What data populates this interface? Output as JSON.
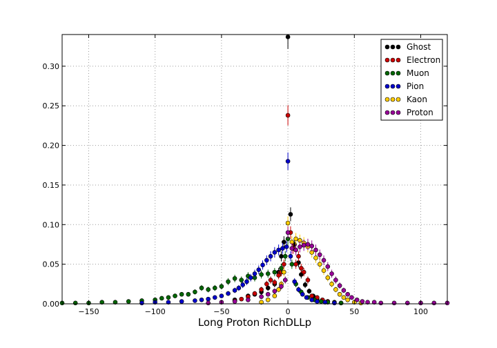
{
  "chart_data": {
    "type": "scatter",
    "title": "",
    "xlabel": "Long Proton RichDLLp",
    "ylabel": "",
    "xlim": [
      -170,
      120
    ],
    "ylim": [
      0,
      0.34
    ],
    "xticks": [
      -150,
      -100,
      -50,
      0,
      50,
      100
    ],
    "xtick_labels": [
      "−150",
      "−100",
      "−50",
      "0",
      "50",
      "100"
    ],
    "yticks": [
      0.0,
      0.05,
      0.1,
      0.15,
      0.2,
      0.25,
      0.3
    ],
    "ytick_labels": [
      "0.00",
      "0.05",
      "0.10",
      "0.15",
      "0.20",
      "0.25",
      "0.30"
    ],
    "grid": true,
    "legend_position": "top-right",
    "series": [
      {
        "name": "Ghost",
        "color": "#000000",
        "points": [
          [
            -40,
            0.005
          ],
          [
            -30,
            0.01
          ],
          [
            -25,
            0.012
          ],
          [
            -20,
            0.015
          ],
          [
            -15,
            0.02
          ],
          [
            -10,
            0.025
          ],
          [
            -7,
            0.04
          ],
          [
            -5,
            0.06
          ],
          [
            -3,
            0.078
          ],
          [
            0,
            0.337
          ],
          [
            2,
            0.113
          ],
          [
            5,
            0.075
          ],
          [
            8,
            0.052
          ],
          [
            10,
            0.037
          ],
          [
            13,
            0.024
          ],
          [
            16,
            0.016
          ],
          [
            19,
            0.01
          ],
          [
            22,
            0.006
          ],
          [
            26,
            0.004
          ],
          [
            30,
            0.003
          ],
          [
            35,
            0.002
          ],
          [
            40,
            0.001
          ]
        ]
      },
      {
        "name": "Electron",
        "color": "#cc0000",
        "points": [
          [
            -40,
            0.004
          ],
          [
            -35,
            0.006
          ],
          [
            -30,
            0.009
          ],
          [
            -25,
            0.013
          ],
          [
            -20,
            0.018
          ],
          [
            -16,
            0.025
          ],
          [
            -13,
            0.03
          ],
          [
            -10,
            0.027
          ],
          [
            -7,
            0.036
          ],
          [
            -5,
            0.04
          ],
          [
            -3,
            0.05
          ],
          [
            0,
            0.238
          ],
          [
            2,
            0.09
          ],
          [
            4,
            0.07
          ],
          [
            6,
            0.05
          ],
          [
            8,
            0.06
          ],
          [
            10,
            0.045
          ],
          [
            12,
            0.04
          ],
          [
            15,
            0.03
          ],
          [
            18,
            0.01
          ],
          [
            22,
            0.008
          ],
          [
            26,
            0.005
          ],
          [
            30,
            0.003
          ]
        ]
      },
      {
        "name": "Muon",
        "color": "#006600",
        "points": [
          [
            -170,
            0.001
          ],
          [
            -160,
            0.001
          ],
          [
            -150,
            0.001
          ],
          [
            -140,
            0.002
          ],
          [
            -130,
            0.002
          ],
          [
            -120,
            0.003
          ],
          [
            -110,
            0.004
          ],
          [
            -100,
            0.005
          ],
          [
            -95,
            0.007
          ],
          [
            -90,
            0.008
          ],
          [
            -85,
            0.01
          ],
          [
            -80,
            0.012
          ],
          [
            -75,
            0.012
          ],
          [
            -70,
            0.015
          ],
          [
            -65,
            0.02
          ],
          [
            -60,
            0.018
          ],
          [
            -55,
            0.02
          ],
          [
            -50,
            0.022
          ],
          [
            -45,
            0.028
          ],
          [
            -40,
            0.032
          ],
          [
            -35,
            0.03
          ],
          [
            -30,
            0.035
          ],
          [
            -25,
            0.033
          ],
          [
            -20,
            0.037
          ],
          [
            -15,
            0.038
          ],
          [
            -10,
            0.04
          ],
          [
            -5,
            0.045
          ],
          [
            -2,
            0.06
          ],
          [
            0,
            0.082
          ],
          [
            3,
            0.05
          ],
          [
            6,
            0.025
          ],
          [
            10,
            0.015
          ],
          [
            15,
            0.008
          ],
          [
            20,
            0.005
          ],
          [
            25,
            0.003
          ],
          [
            30,
            0.002
          ],
          [
            40,
            0.001
          ]
        ]
      },
      {
        "name": "Pion",
        "color": "#0000cc",
        "points": [
          [
            -110,
            0.001
          ],
          [
            -100,
            0.002
          ],
          [
            -90,
            0.002
          ],
          [
            -80,
            0.003
          ],
          [
            -70,
            0.004
          ],
          [
            -65,
            0.005
          ],
          [
            -60,
            0.006
          ],
          [
            -55,
            0.008
          ],
          [
            -50,
            0.01
          ],
          [
            -45,
            0.013
          ],
          [
            -40,
            0.017
          ],
          [
            -37,
            0.02
          ],
          [
            -34,
            0.024
          ],
          [
            -31,
            0.028
          ],
          [
            -28,
            0.033
          ],
          [
            -25,
            0.038
          ],
          [
            -22,
            0.043
          ],
          [
            -19,
            0.049
          ],
          [
            -16,
            0.055
          ],
          [
            -13,
            0.06
          ],
          [
            -10,
            0.065
          ],
          [
            -7,
            0.068
          ],
          [
            -4,
            0.07
          ],
          [
            -1,
            0.072
          ],
          [
            0,
            0.18
          ],
          [
            2,
            0.06
          ],
          [
            5,
            0.028
          ],
          [
            8,
            0.018
          ],
          [
            11,
            0.012
          ],
          [
            14,
            0.008
          ],
          [
            18,
            0.005
          ],
          [
            22,
            0.003
          ],
          [
            28,
            0.002
          ],
          [
            35,
            0.001
          ]
        ]
      },
      {
        "name": "Kaon",
        "color": "#ffcc00",
        "points": [
          [
            -20,
            0.002
          ],
          [
            -15,
            0.005
          ],
          [
            -10,
            0.01
          ],
          [
            -7,
            0.018
          ],
          [
            -5,
            0.025
          ],
          [
            -3,
            0.04
          ],
          [
            0,
            0.102
          ],
          [
            3,
            0.078
          ],
          [
            6,
            0.082
          ],
          [
            9,
            0.08
          ],
          [
            12,
            0.077
          ],
          [
            15,
            0.072
          ],
          [
            18,
            0.065
          ],
          [
            21,
            0.058
          ],
          [
            24,
            0.05
          ],
          [
            27,
            0.042
          ],
          [
            30,
            0.033
          ],
          [
            33,
            0.025
          ],
          [
            36,
            0.018
          ],
          [
            39,
            0.012
          ],
          [
            42,
            0.008
          ],
          [
            45,
            0.005
          ],
          [
            50,
            0.002
          ],
          [
            55,
            0.001
          ]
        ]
      },
      {
        "name": "Proton",
        "color": "#990099",
        "points": [
          [
            -60,
            0.001
          ],
          [
            -50,
            0.002
          ],
          [
            -40,
            0.003
          ],
          [
            -30,
            0.005
          ],
          [
            -20,
            0.009
          ],
          [
            -15,
            0.012
          ],
          [
            -10,
            0.016
          ],
          [
            -5,
            0.022
          ],
          [
            -2,
            0.03
          ],
          [
            0,
            0.09
          ],
          [
            3,
            0.07
          ],
          [
            6,
            0.068
          ],
          [
            9,
            0.072
          ],
          [
            12,
            0.074
          ],
          [
            15,
            0.075
          ],
          [
            18,
            0.073
          ],
          [
            21,
            0.068
          ],
          [
            24,
            0.062
          ],
          [
            27,
            0.055
          ],
          [
            30,
            0.047
          ],
          [
            33,
            0.038
          ],
          [
            36,
            0.03
          ],
          [
            39,
            0.023
          ],
          [
            42,
            0.017
          ],
          [
            45,
            0.012
          ],
          [
            48,
            0.008
          ],
          [
            52,
            0.005
          ],
          [
            56,
            0.003
          ],
          [
            60,
            0.002
          ],
          [
            65,
            0.002
          ],
          [
            70,
            0.001
          ],
          [
            80,
            0.001
          ],
          [
            90,
            0.001
          ],
          [
            100,
            0.001
          ],
          [
            110,
            0.001
          ],
          [
            120,
            0.001
          ]
        ]
      }
    ]
  }
}
